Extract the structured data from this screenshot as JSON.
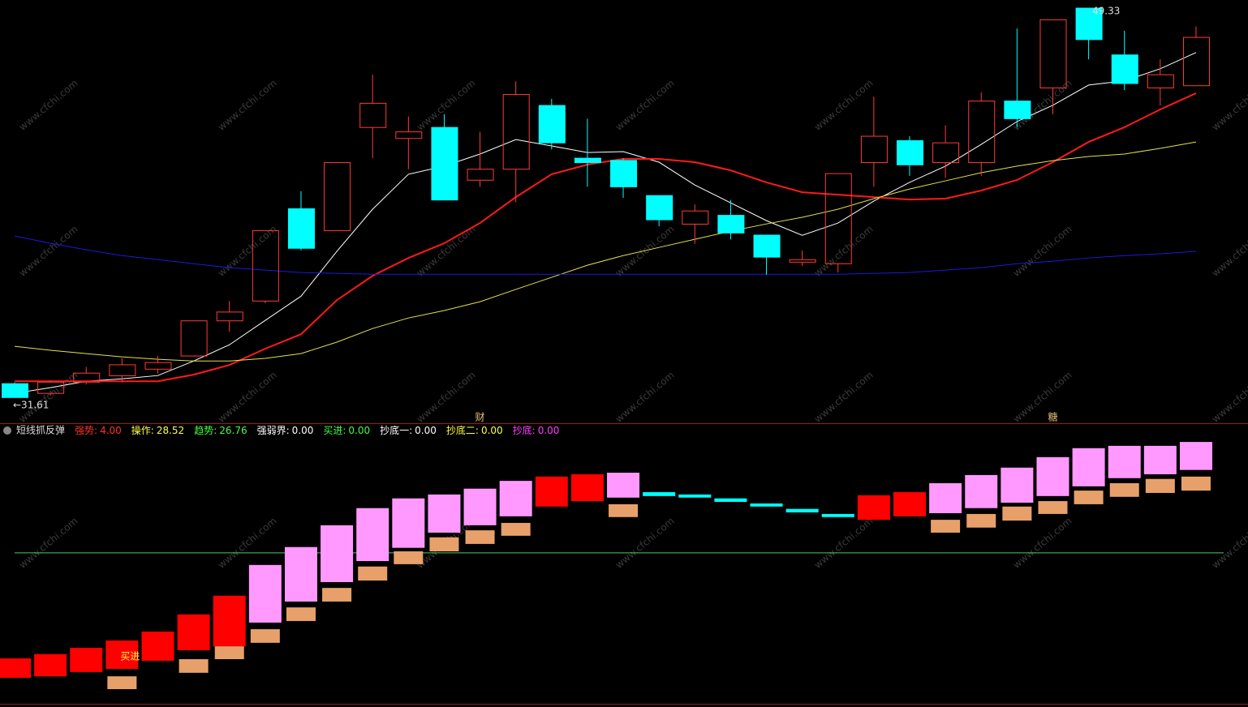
{
  "chart_data": [
    {
      "type": "candlestick",
      "categories": [
        null,
        null,
        null,
        null,
        null,
        null,
        null,
        null,
        null,
        null,
        null,
        null,
        null,
        null,
        null,
        null,
        null,
        null,
        null,
        null,
        null,
        null,
        null,
        null,
        null,
        null,
        null,
        null,
        null,
        null,
        null,
        null,
        null,
        null
      ],
      "open": [
        32.24,
        31.8,
        32.31,
        32.6,
        32.9,
        33.5,
        35.1,
        36.0,
        40.2,
        39.2,
        43.9,
        43.4,
        43.9,
        41.5,
        42.0,
        44.9,
        42.5,
        42.4,
        40.8,
        39.5,
        39.9,
        39.0,
        37.77,
        37.7,
        42.3,
        43.3,
        42.3,
        42.3,
        45.1,
        45.7,
        49.33,
        47.2,
        45.7,
        45.8
      ],
      "high": [
        32.3,
        32.4,
        33.0,
        33.4,
        33.5,
        35.1,
        36.0,
        39.2,
        41.0,
        42.3,
        46.3,
        44.4,
        44.5,
        43.7,
        46.0,
        45.2,
        44.3,
        42.5,
        40.8,
        40.4,
        40.6,
        39.0,
        38.3,
        41.8,
        45.3,
        43.5,
        44.0,
        45.5,
        48.4,
        48.8,
        49.33,
        48.3,
        47.0,
        48.5
      ],
      "low": [
        31.61,
        31.7,
        32.2,
        32.3,
        32.7,
        33.5,
        34.6,
        35.9,
        38.3,
        39.2,
        42.5,
        42.0,
        40.6,
        41.2,
        40.5,
        42.9,
        41.2,
        40.7,
        39.4,
        38.6,
        38.8,
        37.2,
        37.6,
        37.3,
        41.2,
        41.7,
        41.6,
        41.7,
        43.9,
        44.5,
        47.0,
        45.6,
        44.9,
        45.8
      ],
      "close": [
        31.61,
        32.31,
        32.72,
        33.1,
        33.2,
        35.1,
        35.5,
        39.2,
        38.4,
        42.3,
        45.0,
        43.7,
        40.6,
        42.0,
        45.4,
        43.2,
        42.3,
        41.2,
        39.7,
        40.1,
        39.1,
        38.0,
        37.88,
        41.8,
        43.5,
        42.2,
        43.2,
        45.1,
        44.3,
        48.8,
        47.9,
        45.9,
        46.3,
        48.0
      ],
      "up_color": "#ff3b3b",
      "down_color": "#00ffff",
      "series": [
        {
          "color": "#ffffff",
          "values": [
            31.8,
            32.06,
            32.35,
            32.46,
            32.61,
            33.27,
            34.01,
            35.12,
            36.22,
            38.26,
            40.18,
            41.77,
            42.14,
            42.69,
            43.35,
            43.06,
            42.76,
            42.8,
            42.32,
            41.28,
            40.47,
            39.66,
            38.99,
            39.55,
            40.55,
            41.4,
            42.14,
            43.13,
            44.17,
            44.91,
            45.83,
            46.02,
            46.57,
            47.31
          ]
        },
        {
          "color": "#ff1a1a",
          "values": [
            32.35,
            32.35,
            32.35,
            32.35,
            32.35,
            32.65,
            33.09,
            33.83,
            34.49,
            36.04,
            37.15,
            37.96,
            38.63,
            39.55,
            40.73,
            41.77,
            42.21,
            42.47,
            42.47,
            42.32,
            41.95,
            41.4,
            40.95,
            40.84,
            40.73,
            40.62,
            40.66,
            41.03,
            41.51,
            42.32,
            43.24,
            43.91,
            44.72,
            45.46
          ]
        },
        {
          "color": "#e6e04a",
          "values": [
            33.94,
            33.76,
            33.61,
            33.46,
            33.35,
            33.27,
            33.27,
            33.39,
            33.61,
            34.13,
            34.75,
            35.23,
            35.57,
            35.97,
            36.53,
            37.08,
            37.63,
            38.07,
            38.44,
            38.81,
            39.18,
            39.51,
            39.81,
            40.18,
            40.66,
            41.1,
            41.47,
            41.84,
            42.14,
            42.39,
            42.58,
            42.69,
            42.95,
            43.24
          ]
        },
        {
          "color": "#1a1adf",
          "values": [
            38.96,
            38.63,
            38.33,
            38.07,
            37.89,
            37.7,
            37.52,
            37.41,
            37.3,
            37.26,
            37.22,
            37.22,
            37.22,
            37.22,
            37.22,
            37.22,
            37.22,
            37.22,
            37.22,
            37.22,
            37.22,
            37.22,
            37.22,
            37.22,
            37.26,
            37.3,
            37.41,
            37.52,
            37.7,
            37.81,
            37.96,
            38.07,
            38.15,
            38.26
          ]
        }
      ],
      "ylim": [
        30.44,
        49.7
      ],
      "max_label": "49.33",
      "min_label": "←31.61",
      "markers": [
        null,
        null,
        null,
        null,
        null,
        null,
        null,
        null,
        null,
        null,
        null,
        null,
        null,
        "财",
        null,
        null,
        null,
        null,
        null,
        null,
        null,
        null,
        null,
        null,
        null,
        null,
        null,
        null,
        null,
        "糖",
        null,
        null,
        null,
        null
      ],
      "watermark": "www.cfchi.com"
    },
    {
      "type": "indicator",
      "title": "短线抓反弹",
      "legend": [
        {
          "name": "强势:",
          "value": "4.00",
          "color": "#ff3030"
        },
        {
          "name": "操作:",
          "value": "28.52",
          "color": "#ffff40"
        },
        {
          "name": "趋势:",
          "value": "26.76",
          "color": "#40ff40"
        },
        {
          "name": "强弱界:",
          "value": "0.00",
          "color": "#ffffff"
        },
        {
          "name": "买进:",
          "value": "0.00",
          "color": "#40ff40"
        },
        {
          "name": "抄底一:",
          "value": "0.00",
          "color": "#ffffff"
        },
        {
          "name": "抄底二:",
          "value": "0.00",
          "color": "#ffff40"
        },
        {
          "name": "抄底:",
          "value": "0.00",
          "color": "#ff40ff"
        }
      ],
      "box_top": [
        -27.1,
        -26.0,
        -24.4,
        -22.5,
        -20.2,
        -15.8,
        -11.0,
        -3.1,
        1.5,
        7.1,
        11.5,
        14.0,
        15.0,
        16.5,
        18.5,
        19.6,
        20.2,
        20.6,
        15.6,
        15.0,
        14.0,
        12.7,
        11.3,
        10.0,
        14.8,
        15.6,
        17.9,
        20.0,
        21.9,
        24.6,
        26.9,
        27.5,
        27.5,
        28.5
      ],
      "box_bottom": [
        -32.1,
        -31.7,
        -30.6,
        -29.8,
        -27.7,
        -25.0,
        -24.0,
        -17.9,
        -12.5,
        -7.5,
        -2.1,
        1.3,
        5.2,
        7.1,
        9.4,
        11.9,
        13.3,
        14.2,
        14.6,
        14.2,
        13.1,
        11.9,
        10.4,
        9.2,
        8.5,
        9.4,
        10.2,
        11.5,
        12.9,
        14.6,
        17.1,
        19.2,
        20.2,
        21.3
      ],
      "box_color": [
        "#ff0000",
        "#ff0000",
        "#ff0000",
        "#ff0000",
        "#ff0000",
        "#ff0000",
        "#ff0000",
        "#ff99ff",
        "#ff99ff",
        "#ff99ff",
        "#ff99ff",
        "#ff99ff",
        "#ff99ff",
        "#ff99ff",
        "#ff99ff",
        "#ff0000",
        "#ff0000",
        "#ff99ff",
        "#00ffff",
        "#00ffff",
        "#00ffff",
        "#00ffff",
        "#00ffff",
        "#00ffff",
        "#ff0000",
        "#ff0000",
        "#ff99ff",
        "#ff99ff",
        "#ff99ff",
        "#ff99ff",
        "#ff99ff",
        "#ff99ff",
        "#ff99ff",
        "#ff99ff"
      ],
      "lower_top": [
        null,
        null,
        null,
        -31.7,
        null,
        -27.3,
        -24.0,
        -19.6,
        -14.0,
        -9.0,
        -3.5,
        0.4,
        4.0,
        5.8,
        7.7,
        null,
        null,
        12.5,
        null,
        null,
        null,
        null,
        null,
        null,
        null,
        null,
        8.5,
        10.0,
        11.9,
        13.3,
        16.0,
        17.9,
        19.0,
        19.6
      ],
      "lower_bottom": [
        null,
        null,
        null,
        -35.0,
        null,
        -30.8,
        -27.3,
        -23.1,
        -17.5,
        -12.5,
        -7.1,
        -2.9,
        0.4,
        2.3,
        4.4,
        null,
        null,
        9.2,
        null,
        null,
        null,
        null,
        null,
        null,
        null,
        null,
        5.2,
        6.5,
        8.3,
        10.0,
        12.5,
        14.4,
        15.4,
        16.0
      ],
      "lower_color": "#e8a06a",
      "baseline": 0,
      "baseline_color": "#40d060",
      "signal_labels": [
        null,
        null,
        null,
        "买进",
        null,
        null,
        null,
        null,
        null,
        null,
        null,
        null,
        null,
        null,
        null,
        null,
        null,
        null,
        null,
        null,
        null,
        null,
        null,
        null,
        null,
        null,
        null,
        null,
        null,
        null,
        null,
        null,
        null,
        null
      ],
      "ylim": [
        -38.75,
        33.1
      ]
    }
  ]
}
